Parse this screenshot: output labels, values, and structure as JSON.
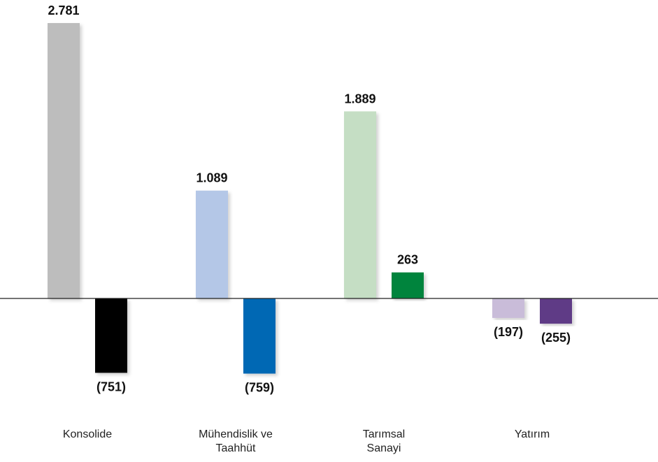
{
  "chart_data": {
    "type": "bar",
    "categories": [
      [
        "Konsolide"
      ],
      [
        "Mühendislik ve",
        "Taahhüt"
      ],
      [
        "Tarımsal",
        "Sanayi"
      ],
      [
        "Yatırım"
      ]
    ],
    "series": [
      {
        "values": [
          2781,
          1089,
          1889,
          -197
        ],
        "labels": [
          "2.781",
          "1.089",
          "1.889",
          "(197)"
        ],
        "colors": [
          "#bdbdbd",
          "#b4c7e7",
          "#c5dec4",
          "#c9bcd9"
        ]
      },
      {
        "values": [
          -751,
          -759,
          263,
          -255
        ],
        "labels": [
          "(751)",
          "(759)",
          "263",
          "(255)"
        ],
        "colors": [
          "#000000",
          "#0068b4",
          "#00843d",
          "#5e3a86"
        ]
      }
    ],
    "ylim": [
      -900,
      2850
    ],
    "grid": false,
    "legend": "none"
  }
}
